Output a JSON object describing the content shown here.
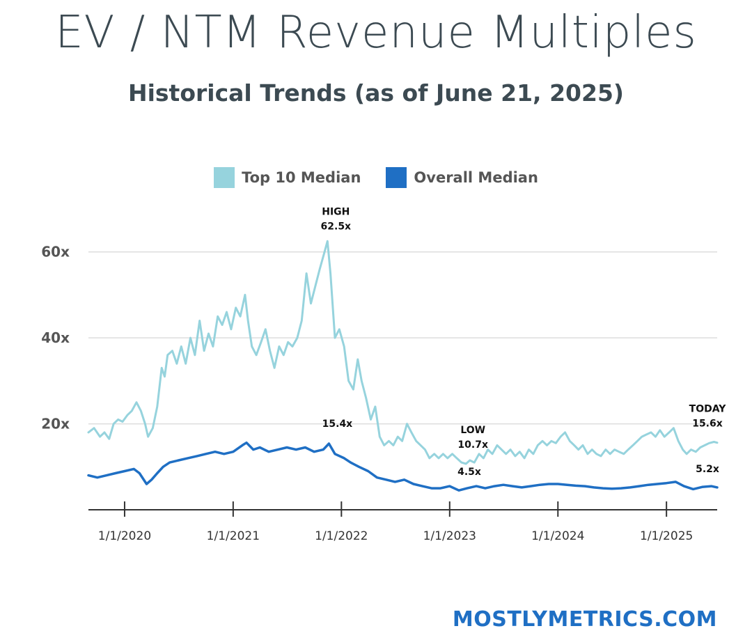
{
  "header": {
    "title": "EV / NTM Revenue Multiples",
    "subtitle": "Historical Trends (as of June 21, 2025)"
  },
  "footer": {
    "brand": "MOSTLYMETRICS.COM"
  },
  "colors": {
    "top10": "#96d3dd",
    "overall": "#1f6fc4",
    "grid": "#dddddd",
    "text": "#3c4a52",
    "brand": "#1f6fc4"
  },
  "chart_data": {
    "type": "line",
    "title": "EV / NTM Revenue Multiples",
    "subtitle": "Historical Trends (as of June 21, 2025)",
    "x_range": [
      "2019-09-01",
      "2025-06-21"
    ],
    "ylim": [
      0,
      70
    ],
    "yticks": [
      20,
      40,
      60
    ],
    "ytick_labels": [
      "20x",
      "40x",
      "60x"
    ],
    "xticks": [
      "2020-01-01",
      "2021-01-01",
      "2022-01-01",
      "2023-01-01",
      "2024-01-01",
      "2025-01-01"
    ],
    "xtick_labels": [
      "1/1/2020",
      "1/1/2021",
      "1/1/2022",
      "1/1/2023",
      "1/1/2024",
      "1/1/2025"
    ],
    "grid": true,
    "legend_position": "top-center",
    "series": [
      {
        "name": "Top 10 Median",
        "color": "#96d3dd",
        "points": [
          [
            "2019-09-01",
            18
          ],
          [
            "2019-09-20",
            19
          ],
          [
            "2019-10-10",
            17
          ],
          [
            "2019-10-25",
            18
          ],
          [
            "2019-11-10",
            16.5
          ],
          [
            "2019-11-25",
            20
          ],
          [
            "2019-12-10",
            21
          ],
          [
            "2019-12-25",
            20.5
          ],
          [
            "2020-01-10",
            22
          ],
          [
            "2020-01-25",
            23
          ],
          [
            "2020-02-10",
            25
          ],
          [
            "2020-02-25",
            23
          ],
          [
            "2020-03-10",
            20
          ],
          [
            "2020-03-20",
            17
          ],
          [
            "2020-04-05",
            19
          ],
          [
            "2020-04-20",
            24
          ],
          [
            "2020-05-05",
            33
          ],
          [
            "2020-05-15",
            31
          ],
          [
            "2020-05-25",
            36
          ],
          [
            "2020-06-10",
            37
          ],
          [
            "2020-06-25",
            34
          ],
          [
            "2020-07-10",
            38
          ],
          [
            "2020-07-25",
            34
          ],
          [
            "2020-08-10",
            40
          ],
          [
            "2020-08-25",
            36
          ],
          [
            "2020-09-10",
            44
          ],
          [
            "2020-09-25",
            37
          ],
          [
            "2020-10-10",
            41
          ],
          [
            "2020-10-25",
            38
          ],
          [
            "2020-11-10",
            45
          ],
          [
            "2020-11-25",
            43
          ],
          [
            "2020-12-10",
            46
          ],
          [
            "2020-12-25",
            42
          ],
          [
            "2021-01-10",
            47
          ],
          [
            "2021-01-25",
            45
          ],
          [
            "2021-02-10",
            50
          ],
          [
            "2021-02-20",
            44
          ],
          [
            "2021-03-05",
            38
          ],
          [
            "2021-03-20",
            36
          ],
          [
            "2021-04-05",
            39
          ],
          [
            "2021-04-20",
            42
          ],
          [
            "2021-05-05",
            37
          ],
          [
            "2021-05-20",
            33
          ],
          [
            "2021-06-05",
            38
          ],
          [
            "2021-06-20",
            36
          ],
          [
            "2021-07-05",
            39
          ],
          [
            "2021-07-20",
            38
          ],
          [
            "2021-08-05",
            40
          ],
          [
            "2021-08-20",
            44
          ],
          [
            "2021-09-05",
            55
          ],
          [
            "2021-09-20",
            48
          ],
          [
            "2021-10-05",
            52
          ],
          [
            "2021-10-20",
            56
          ],
          [
            "2021-11-05",
            60
          ],
          [
            "2021-11-15",
            62.5
          ],
          [
            "2021-11-25",
            55
          ],
          [
            "2021-12-10",
            40
          ],
          [
            "2021-12-25",
            42
          ],
          [
            "2022-01-10",
            38
          ],
          [
            "2022-01-25",
            30
          ],
          [
            "2022-02-10",
            28
          ],
          [
            "2022-02-25",
            35
          ],
          [
            "2022-03-10",
            30
          ],
          [
            "2022-03-25",
            26
          ],
          [
            "2022-04-10",
            21
          ],
          [
            "2022-04-25",
            24
          ],
          [
            "2022-05-10",
            17
          ],
          [
            "2022-05-25",
            15
          ],
          [
            "2022-06-10",
            16
          ],
          [
            "2022-06-25",
            15
          ],
          [
            "2022-07-10",
            17
          ],
          [
            "2022-07-25",
            16
          ],
          [
            "2022-08-10",
            20
          ],
          [
            "2022-08-25",
            18
          ],
          [
            "2022-09-10",
            16
          ],
          [
            "2022-09-25",
            15
          ],
          [
            "2022-10-10",
            14
          ],
          [
            "2022-10-25",
            12
          ],
          [
            "2022-11-10",
            13
          ],
          [
            "2022-11-25",
            12
          ],
          [
            "2022-12-10",
            13
          ],
          [
            "2022-12-25",
            12
          ],
          [
            "2023-01-10",
            13
          ],
          [
            "2023-01-25",
            12
          ],
          [
            "2023-02-10",
            11
          ],
          [
            "2023-02-25",
            10.7
          ],
          [
            "2023-03-10",
            11.5
          ],
          [
            "2023-03-25",
            11
          ],
          [
            "2023-04-10",
            13
          ],
          [
            "2023-04-25",
            12
          ],
          [
            "2023-05-10",
            14
          ],
          [
            "2023-05-25",
            13
          ],
          [
            "2023-06-10",
            15
          ],
          [
            "2023-06-25",
            14
          ],
          [
            "2023-07-10",
            13
          ],
          [
            "2023-07-25",
            14
          ],
          [
            "2023-08-10",
            12.5
          ],
          [
            "2023-08-25",
            13.5
          ],
          [
            "2023-09-10",
            12
          ],
          [
            "2023-09-25",
            14
          ],
          [
            "2023-10-10",
            13
          ],
          [
            "2023-10-25",
            15
          ],
          [
            "2023-11-10",
            16
          ],
          [
            "2023-11-25",
            15
          ],
          [
            "2023-12-10",
            16
          ],
          [
            "2023-12-25",
            15.5
          ],
          [
            "2024-01-10",
            17
          ],
          [
            "2024-01-25",
            18
          ],
          [
            "2024-02-10",
            16
          ],
          [
            "2024-02-25",
            15
          ],
          [
            "2024-03-10",
            14
          ],
          [
            "2024-03-25",
            15
          ],
          [
            "2024-04-10",
            13
          ],
          [
            "2024-04-25",
            14
          ],
          [
            "2024-05-10",
            13
          ],
          [
            "2024-05-25",
            12.5
          ],
          [
            "2024-06-10",
            14
          ],
          [
            "2024-06-25",
            13
          ],
          [
            "2024-07-10",
            14
          ],
          [
            "2024-07-25",
            13.5
          ],
          [
            "2024-08-10",
            13
          ],
          [
            "2024-08-25",
            14
          ],
          [
            "2024-09-10",
            15
          ],
          [
            "2024-09-25",
            16
          ],
          [
            "2024-10-10",
            17
          ],
          [
            "2024-10-25",
            17.5
          ],
          [
            "2024-11-10",
            18
          ],
          [
            "2024-11-25",
            17
          ],
          [
            "2024-12-10",
            18.5
          ],
          [
            "2024-12-25",
            17
          ],
          [
            "2025-01-10",
            18
          ],
          [
            "2025-01-25",
            19
          ],
          [
            "2025-02-10",
            16
          ],
          [
            "2025-02-25",
            14
          ],
          [
            "2025-03-10",
            13
          ],
          [
            "2025-03-25",
            14
          ],
          [
            "2025-04-10",
            13.5
          ],
          [
            "2025-04-25",
            14.5
          ],
          [
            "2025-05-10",
            15
          ],
          [
            "2025-05-25",
            15.5
          ],
          [
            "2025-06-10",
            15.8
          ],
          [
            "2025-06-21",
            15.6
          ]
        ]
      },
      {
        "name": "Overall Median",
        "color": "#1f6fc4",
        "points": [
          [
            "2019-09-01",
            8
          ],
          [
            "2019-10-01",
            7.5
          ],
          [
            "2019-11-01",
            8
          ],
          [
            "2019-12-01",
            8.5
          ],
          [
            "2020-01-01",
            9
          ],
          [
            "2020-02-01",
            9.5
          ],
          [
            "2020-02-20",
            8.5
          ],
          [
            "2020-03-15",
            6
          ],
          [
            "2020-04-01",
            7
          ],
          [
            "2020-04-20",
            8.5
          ],
          [
            "2020-05-10",
            10
          ],
          [
            "2020-06-01",
            11
          ],
          [
            "2020-07-01",
            11.5
          ],
          [
            "2020-08-01",
            12
          ],
          [
            "2020-09-01",
            12.5
          ],
          [
            "2020-10-01",
            13
          ],
          [
            "2020-11-01",
            13.5
          ],
          [
            "2020-12-01",
            13
          ],
          [
            "2021-01-01",
            13.5
          ],
          [
            "2021-02-01",
            15
          ],
          [
            "2021-02-15",
            15.6
          ],
          [
            "2021-03-10",
            14
          ],
          [
            "2021-04-01",
            14.5
          ],
          [
            "2021-05-01",
            13.5
          ],
          [
            "2021-06-01",
            14
          ],
          [
            "2021-07-01",
            14.5
          ],
          [
            "2021-08-01",
            14
          ],
          [
            "2021-09-01",
            14.5
          ],
          [
            "2021-10-01",
            13.5
          ],
          [
            "2021-11-01",
            14
          ],
          [
            "2021-11-20",
            15.4
          ],
          [
            "2021-12-10",
            13
          ],
          [
            "2022-01-10",
            12
          ],
          [
            "2022-02-01",
            11
          ],
          [
            "2022-03-01",
            10
          ],
          [
            "2022-04-01",
            9
          ],
          [
            "2022-05-01",
            7.5
          ],
          [
            "2022-06-01",
            7
          ],
          [
            "2022-07-01",
            6.5
          ],
          [
            "2022-08-01",
            7
          ],
          [
            "2022-09-01",
            6
          ],
          [
            "2022-10-01",
            5.5
          ],
          [
            "2022-11-01",
            5
          ],
          [
            "2022-12-01",
            5
          ],
          [
            "2023-01-01",
            5.5
          ],
          [
            "2023-02-01",
            4.5
          ],
          [
            "2023-03-01",
            5
          ],
          [
            "2023-04-01",
            5.5
          ],
          [
            "2023-05-01",
            5
          ],
          [
            "2023-06-01",
            5.5
          ],
          [
            "2023-07-01",
            5.8
          ],
          [
            "2023-08-01",
            5.5
          ],
          [
            "2023-09-01",
            5.2
          ],
          [
            "2023-10-01",
            5.5
          ],
          [
            "2023-11-01",
            5.8
          ],
          [
            "2023-12-01",
            6
          ],
          [
            "2024-01-01",
            6
          ],
          [
            "2024-02-01",
            5.8
          ],
          [
            "2024-03-01",
            5.6
          ],
          [
            "2024-04-01",
            5.5
          ],
          [
            "2024-05-01",
            5.2
          ],
          [
            "2024-06-01",
            5
          ],
          [
            "2024-07-01",
            4.9
          ],
          [
            "2024-08-01",
            5
          ],
          [
            "2024-09-01",
            5.2
          ],
          [
            "2024-10-01",
            5.5
          ],
          [
            "2024-11-01",
            5.8
          ],
          [
            "2024-12-01",
            6
          ],
          [
            "2025-01-01",
            6.2
          ],
          [
            "2025-02-01",
            6.5
          ],
          [
            "2025-03-01",
            5.5
          ],
          [
            "2025-04-01",
            4.8
          ],
          [
            "2025-05-01",
            5.3
          ],
          [
            "2025-06-01",
            5.5
          ],
          [
            "2025-06-21",
            5.2
          ]
        ]
      }
    ],
    "annotations": [
      {
        "x": "2021-11-15",
        "y": 62.5,
        "lines": [
          "HIGH",
          "62.5x"
        ]
      },
      {
        "x": "2021-11-20",
        "y": 15.4,
        "lines": [
          "15.4x"
        ]
      },
      {
        "x": "2023-02-25",
        "y": 10.7,
        "lines": [
          "LOW",
          "10.7x"
        ]
      },
      {
        "x": "2023-02-01",
        "y": 4.5,
        "lines": [
          "4.5x"
        ]
      },
      {
        "x": "2025-06-21",
        "y": 15.6,
        "lines": [
          "TODAY",
          "15.6x"
        ]
      },
      {
        "x": "2025-06-21",
        "y": 5.2,
        "lines": [
          "5.2x"
        ]
      }
    ]
  }
}
